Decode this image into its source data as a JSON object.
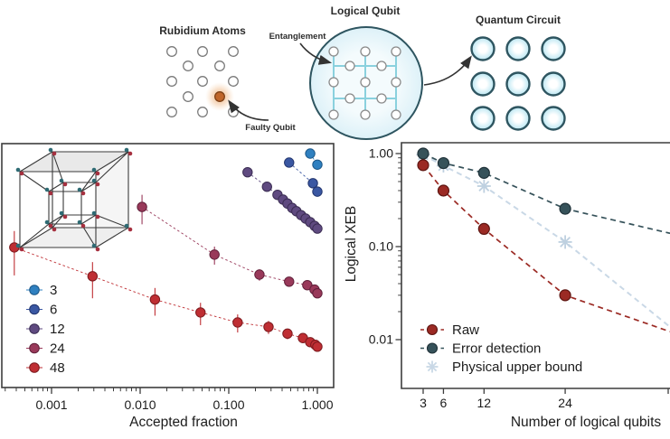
{
  "top": {
    "rubidium_label": "Rubidium Atoms",
    "faulty_label": "Faulty Qubit",
    "logical_label": "Logical Qubit",
    "entanglement_label": "Entanglement",
    "circuit_label": "Quantum Circuit"
  },
  "colors": {
    "cyan_line": "#8ad1de",
    "qubit_border": "#2e5560",
    "qubit_fill": "#cdeef7",
    "atom_stroke": "#7a7a7a",
    "faulty_fill": "#c0662a",
    "faulty_glow": "#e89a55",
    "arrow": "#333333",
    "axis": "#3d3d3d",
    "tesseract_red": "#a6303f",
    "tesseract_teal": "#2e6b74"
  },
  "chart_data": [
    {
      "type": "scatter",
      "xlabel": "Accepted fraction",
      "x_scale": "log",
      "y_scale": "log",
      "xlim": [
        0.00028,
        1.5
      ],
      "ylim": [
        0.003,
        1.28
      ],
      "grid": false,
      "legend_position": "lower-left-inside",
      "x_ticks": [
        {
          "v": 0.001,
          "label": "0.001"
        },
        {
          "v": 0.01,
          "label": "0.010"
        },
        {
          "v": 0.1,
          "label": "0.100"
        },
        {
          "v": 1.0,
          "label": "1.000"
        }
      ],
      "series": [
        {
          "name": "3",
          "color": "#2f80c0",
          "edge": "#1b5686",
          "points": [
            [
              0.83,
              1.0
            ],
            [
              1.0,
              0.76
            ]
          ]
        },
        {
          "name": "6",
          "color": "#3a57a2",
          "edge": "#22356e",
          "points": [
            [
              0.48,
              0.8
            ],
            [
              0.89,
              0.48
            ],
            [
              1.0,
              0.39
            ]
          ]
        },
        {
          "name": "12",
          "color": "#5f4a80",
          "edge": "#3a2c52",
          "points": [
            [
              0.163,
              0.63
            ],
            [
              0.27,
              0.44
            ],
            [
              0.355,
              0.36
            ],
            [
              0.41,
              0.32
            ],
            [
              0.46,
              0.29
            ],
            [
              0.52,
              0.26
            ],
            [
              0.58,
              0.24
            ],
            [
              0.655,
              0.218
            ],
            [
              0.737,
              0.2
            ],
            [
              0.83,
              0.183
            ],
            [
              0.93,
              0.167
            ],
            [
              1.0,
              0.156
            ]
          ]
        },
        {
          "name": "24",
          "color": "#99395a",
          "edge": "#61203a",
          "points": [
            [
              0.0105,
              0.267
            ],
            [
              0.069,
              0.082
            ],
            [
              0.222,
              0.05
            ],
            [
              0.48,
              0.042
            ],
            [
              0.77,
              0.0385
            ],
            [
              0.93,
              0.0345
            ],
            [
              1.0,
              0.0315
            ]
          ],
          "yerr_rel": [
            0.35,
            0.22,
            0.14,
            0.12,
            0.1,
            0.09,
            0.08
          ]
        },
        {
          "name": "48",
          "color": "#bf2e33",
          "edge": "#7c1a1e",
          "points": [
            [
              0.00038,
              0.098
            ],
            [
              0.0029,
              0.048
            ],
            [
              0.0147,
              0.027
            ],
            [
              0.048,
              0.0196
            ],
            [
              0.126,
              0.0153
            ],
            [
              0.281,
              0.0137
            ],
            [
              0.46,
              0.0116
            ],
            [
              0.687,
              0.0104
            ],
            [
              0.83,
              0.0094
            ],
            [
              0.95,
              0.0088
            ],
            [
              1.0,
              0.0084
            ]
          ],
          "yerr_rel": [
            0.5,
            0.42,
            0.33,
            0.27,
            0.22,
            0.16,
            0.13,
            0.11,
            0.1,
            0.09,
            0.09
          ]
        }
      ]
    },
    {
      "type": "line",
      "xlabel": "Number of logical qubits",
      "ylabel": "Logical XEB",
      "x_scale": "linear",
      "y_scale": "log",
      "xlim": [
        -0.2,
        39.5
      ],
      "ylim": [
        0.003,
        1.31
      ],
      "grid": false,
      "legend_position": "lower-left-inside",
      "x_ticks": [
        {
          "v": 3,
          "label": "3"
        },
        {
          "v": 6,
          "label": "6"
        },
        {
          "v": 12,
          "label": "12"
        },
        {
          "v": 24,
          "label": "24"
        }
      ],
      "y_ticks": [
        {
          "v": 1.0,
          "label": "1.00"
        },
        {
          "v": 0.1,
          "label": "0.10"
        },
        {
          "v": 0.01,
          "label": "0.01"
        }
      ],
      "series": [
        {
          "name": "Physical upper bound",
          "color": "#c9d8e6",
          "marker": "asterisk",
          "points": [
            [
              3,
              0.97
            ],
            [
              6,
              0.74
            ],
            [
              12,
              0.447
            ],
            [
              24,
              0.112
            ]
          ],
          "line_end": [
            39.5,
            0.0137
          ]
        },
        {
          "name": "Error detection",
          "color": "#36525a",
          "edge": "#1f3138",
          "marker": "circle",
          "points": [
            [
              3,
              1.0
            ],
            [
              6,
              0.79
            ],
            [
              12,
              0.62
            ],
            [
              24,
              0.255
            ]
          ],
          "line_end": [
            39.5,
            0.139
          ]
        },
        {
          "name": "Raw",
          "color": "#9b2a24",
          "edge": "#5d1511",
          "marker": "circle",
          "points": [
            [
              3,
              0.75
            ],
            [
              6,
              0.4
            ],
            [
              12,
              0.155
            ],
            [
              24,
              0.03
            ]
          ],
          "line_end": [
            39.5,
            0.0122
          ]
        }
      ],
      "legend_order": [
        "Raw",
        "Error detection",
        "Physical upper bound"
      ]
    }
  ]
}
